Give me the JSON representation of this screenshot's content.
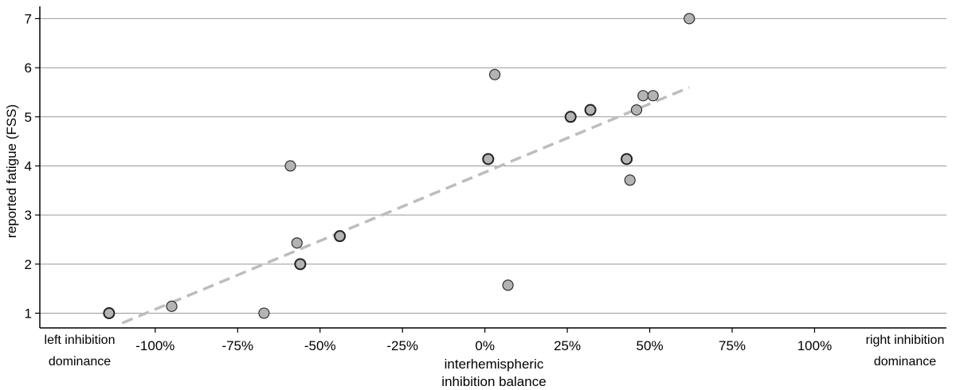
{
  "chart_data": {
    "type": "scatter",
    "ylabel": "reported fatigue (FSS)",
    "xlabel_lines": [
      "interhemispheric",
      "inhibition balance"
    ],
    "x_left_label_lines": [
      "left inhibition",
      "dominance"
    ],
    "x_right_label_lines": [
      "right inhibition",
      "dominance"
    ],
    "x_range": [
      -135,
      140
    ],
    "y_range": [
      0.7,
      7.25
    ],
    "x_ticks": [
      -100,
      -75,
      -50,
      -25,
      0,
      25,
      50,
      75,
      100
    ],
    "x_tick_labels": [
      "-100%",
      "-75%",
      "-50%",
      "-25%",
      "0%",
      "25%",
      "50%",
      "75%",
      "100%"
    ],
    "y_ticks": [
      1,
      2,
      3,
      4,
      5,
      6,
      7
    ],
    "y_tick_labels": [
      "1",
      "2",
      "3",
      "4",
      "5",
      "6",
      "7"
    ],
    "grid": "horizontal",
    "colors": {
      "point_fill": "#b3b3b3",
      "trend": "#bdbdbd",
      "grid": "#999999"
    },
    "points": [
      {
        "x": -114,
        "y": 1.0,
        "bold": true
      },
      {
        "x": -95,
        "y": 1.14,
        "bold": false
      },
      {
        "x": -67,
        "y": 1.0,
        "bold": false
      },
      {
        "x": -59,
        "y": 4.0,
        "bold": false
      },
      {
        "x": -57,
        "y": 2.43,
        "bold": false
      },
      {
        "x": -56,
        "y": 2.0,
        "bold": true
      },
      {
        "x": -44,
        "y": 2.57,
        "bold": true
      },
      {
        "x": 1,
        "y": 4.14,
        "bold": true
      },
      {
        "x": 3,
        "y": 5.86,
        "bold": false
      },
      {
        "x": 7,
        "y": 1.57,
        "bold": false
      },
      {
        "x": 26,
        "y": 5.0,
        "bold": true
      },
      {
        "x": 32,
        "y": 5.14,
        "bold": true
      },
      {
        "x": 43,
        "y": 4.14,
        "bold": true
      },
      {
        "x": 44,
        "y": 3.71,
        "bold": false
      },
      {
        "x": 46,
        "y": 5.14,
        "bold": false
      },
      {
        "x": 48,
        "y": 5.43,
        "bold": false
      },
      {
        "x": 51,
        "y": 5.43,
        "bold": false
      },
      {
        "x": 62,
        "y": 7.0,
        "bold": false
      }
    ],
    "trendline": {
      "x": [
        -110,
        62
      ],
      "y": [
        0.8,
        5.6
      ],
      "style": "dashed"
    }
  }
}
